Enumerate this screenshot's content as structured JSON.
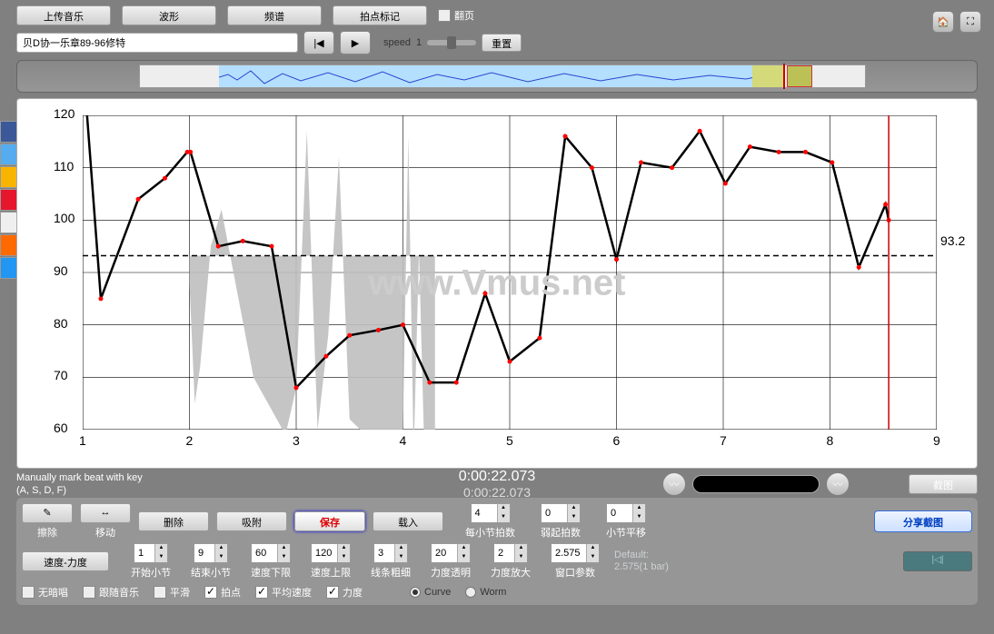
{
  "topButtons": {
    "upload": "上传音乐",
    "wave": "波形",
    "spectrum": "频谱",
    "beatmark": "拍点标记",
    "page": "翻页"
  },
  "title": "贝D协一乐章89-96修特",
  "speed": {
    "label": "speed",
    "value": "1",
    "reset": "重置"
  },
  "timecode1": "0:00:22.073",
  "timecode2": "0:00:22.073",
  "hintLine1": "Manually mark beat with key",
  "hintLine2": "(A, S, D, F)",
  "screenshot": "截图",
  "bottom1": {
    "erase": "擦除",
    "move": "移动",
    "delete": "删除",
    "snap": "吸附",
    "save": "保存",
    "load": "载入",
    "beatsPerBar": {
      "v": "4",
      "lbl": "每小节拍数"
    },
    "pickupBeats": {
      "v": "0",
      "lbl": "弱起拍数"
    },
    "barOffset": {
      "v": "0",
      "lbl": "小节平移"
    },
    "share": "分享截图"
  },
  "bottom2": {
    "tempoLoud": "速度-力度",
    "startBar": {
      "v": "1",
      "lbl": "开始小节"
    },
    "endBar": {
      "v": "9",
      "lbl": "结束小节"
    },
    "tempoMin": {
      "v": "60",
      "lbl": "速度下限"
    },
    "tempoMax": {
      "v": "120",
      "lbl": "速度上限"
    },
    "lineWidth": {
      "v": "3",
      "lbl": "线条粗细"
    },
    "opac": {
      "v": "20",
      "lbl": "力度透明"
    },
    "scale": {
      "v": "2",
      "lbl": "力度放大"
    },
    "winParam": {
      "v": "2.575",
      "lbl": "窗口参数"
    },
    "defaultLbl": "Default:",
    "defaultVal": "2.575(1 bar)",
    "playIcon": "|◁|"
  },
  "checks": {
    "noDark": "无暗唱",
    "followMusic": "跟随音乐",
    "smooth": "平滑",
    "beatDot": "拍点",
    "avgTempo": "平均速度",
    "loudness": "力度",
    "curve": "Curve",
    "worm": "Worm"
  },
  "watermark": "www.Vmus.net",
  "chart": {
    "xlim": [
      1,
      9
    ],
    "ylim": [
      60,
      120
    ],
    "xticks": [
      1,
      2,
      3,
      4,
      5,
      6,
      7,
      8,
      9
    ],
    "yticks": [
      60,
      70,
      80,
      90,
      100,
      110,
      120
    ],
    "refValue": 93.2,
    "line_color": "#000000",
    "point_color": "#ff0000",
    "ref_color": "#000000",
    "cursor_color": "#cc0000",
    "grid_color": "#000000",
    "points": [
      [
        1.03,
        123
      ],
      [
        1.17,
        85
      ],
      [
        1.52,
        104
      ],
      [
        1.77,
        108
      ],
      [
        1.98,
        113
      ],
      [
        2.01,
        113
      ],
      [
        2.27,
        95
      ],
      [
        2.5,
        96
      ],
      [
        2.77,
        95
      ],
      [
        3.0,
        68
      ],
      [
        3.28,
        74
      ],
      [
        3.5,
        78
      ],
      [
        3.77,
        79
      ],
      [
        4.0,
        80
      ],
      [
        4.25,
        69
      ],
      [
        4.5,
        69
      ],
      [
        4.77,
        86
      ],
      [
        5.0,
        73
      ],
      [
        5.28,
        77.5
      ],
      [
        5.52,
        116
      ],
      [
        5.77,
        110
      ],
      [
        6.0,
        92.5
      ],
      [
        6.23,
        111
      ],
      [
        6.52,
        110
      ],
      [
        6.78,
        117
      ],
      [
        7.02,
        107
      ],
      [
        7.25,
        114
      ],
      [
        7.52,
        113
      ],
      [
        7.77,
        113
      ],
      [
        8.02,
        111
      ],
      [
        8.27,
        91
      ],
      [
        8.52,
        103
      ],
      [
        8.55,
        100
      ]
    ],
    "loud_poly": [
      [
        2.0,
        88
      ],
      [
        2.05,
        65
      ],
      [
        2.1,
        72
      ],
      [
        2.2,
        95
      ],
      [
        2.3,
        102
      ],
      [
        2.6,
        70
      ],
      [
        2.9,
        59
      ],
      [
        3.0,
        68
      ],
      [
        3.1,
        117
      ],
      [
        3.2,
        60
      ],
      [
        3.3,
        78
      ],
      [
        3.4,
        112
      ],
      [
        3.5,
        62
      ],
      [
        3.6,
        60
      ],
      [
        3.95,
        55
      ],
      [
        3.97,
        55
      ],
      [
        4.0,
        60
      ],
      [
        4.05,
        116
      ],
      [
        4.1,
        55
      ],
      [
        4.15,
        94
      ],
      [
        4.2,
        56
      ],
      [
        4.28,
        55
      ],
      [
        4.3,
        55
      ],
      [
        4.3,
        93.2
      ],
      [
        2.0,
        93.2
      ]
    ],
    "loud_fill": "#bfbfbf",
    "cursor_x": 8.55
  }
}
